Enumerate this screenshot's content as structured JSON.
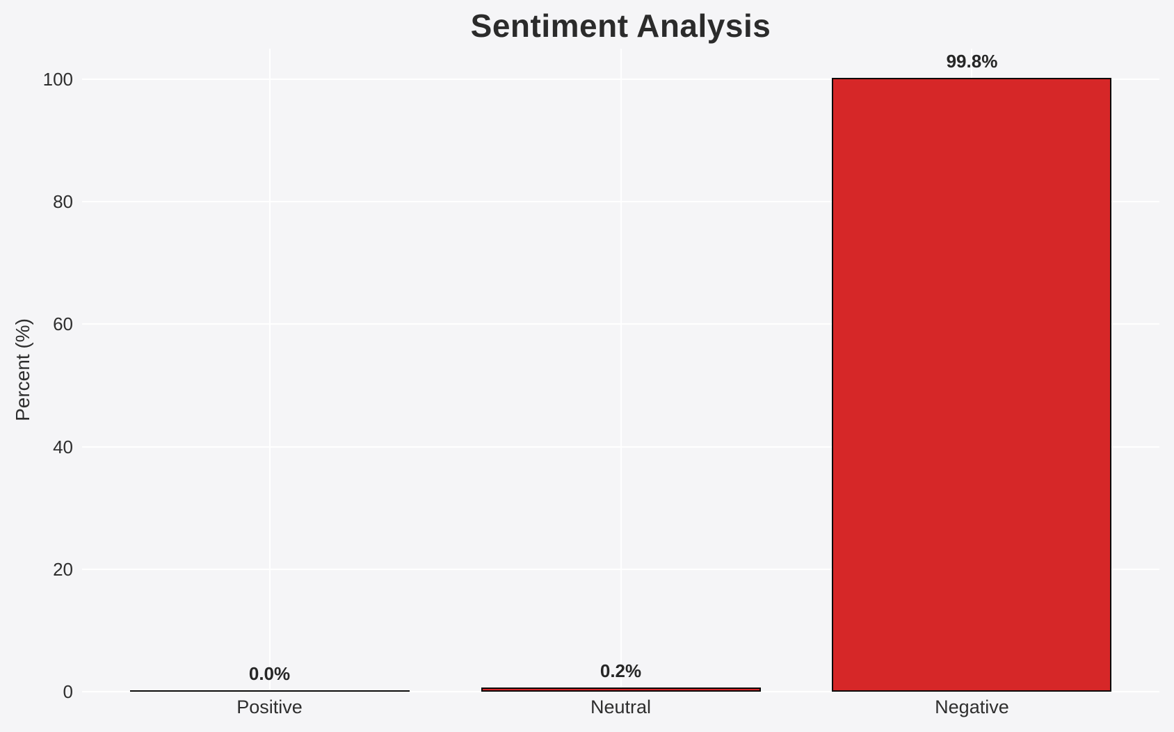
{
  "chart_data": {
    "type": "bar",
    "title": "Sentiment Analysis",
    "xlabel": "",
    "ylabel": "Percent (%)",
    "categories": [
      "Positive",
      "Neutral",
      "Negative"
    ],
    "values": [
      0.0,
      0.2,
      99.8
    ],
    "bar_labels": [
      "0.0%",
      "0.2%",
      "99.8%"
    ],
    "yticks": [
      0,
      20,
      40,
      60,
      80,
      100
    ],
    "ylim": [
      0,
      105
    ],
    "grid": "on",
    "legend": "none",
    "colors": {
      "bar_fill": "#d62728",
      "bar_edge": "#0a0a0a",
      "background": "#f5f5f7",
      "gridline": "#ffffff",
      "text": "#2e2e2e",
      "title_text": "#2b2b2b"
    }
  }
}
